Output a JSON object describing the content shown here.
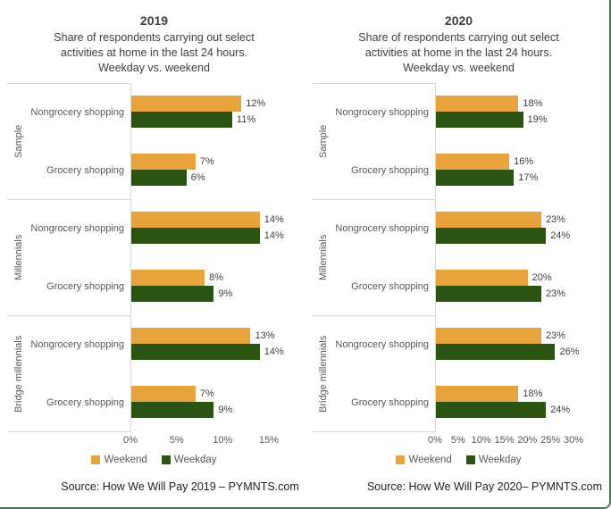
{
  "colors": {
    "weekend": "#E8A33C",
    "weekday": "#2B5413",
    "page_border": "#4A7654",
    "axis_line": "#D9D9D9"
  },
  "chart_data": [
    {
      "type": "bar",
      "orientation": "horizontal",
      "title": "2019",
      "subtitle_lines": [
        "Share of respondents carrying out select",
        "activities at home in the last 24 hours.",
        "Weekday vs. weekend"
      ],
      "xlim": [
        0,
        15
      ],
      "max": 15,
      "ticks": [
        "0%",
        "5%",
        "10%",
        "15%"
      ],
      "legend_position": "bottom",
      "legend": [
        {
          "label": "Weekend"
        },
        {
          "label": "Weekday"
        }
      ],
      "series": [
        {
          "name": "Weekend",
          "color": "#E8A33C",
          "values": [
            12,
            7,
            14,
            8,
            13,
            7
          ]
        },
        {
          "name": "Weekday",
          "color": "#2B5413",
          "values": [
            11,
            6,
            14,
            9,
            14,
            9
          ]
        }
      ],
      "groups": [
        {
          "label": "Sample",
          "rows": [
            {
              "category": "Nongrocery shopping",
              "weekend": 12,
              "weekend_label": "12%",
              "weekday": 11,
              "weekday_label": "11%"
            },
            {
              "category": "Grocery shopping",
              "weekend": 7,
              "weekend_label": "7%",
              "weekday": 6,
              "weekday_label": "6%"
            }
          ]
        },
        {
          "label": "Millennials",
          "rows": [
            {
              "category": "Nongrocery shopping",
              "weekend": 14,
              "weekend_label": "14%",
              "weekday": 14,
              "weekday_label": "14%"
            },
            {
              "category": "Grocery shopping",
              "weekend": 8,
              "weekend_label": "8%",
              "weekday": 9,
              "weekday_label": "9%"
            }
          ]
        },
        {
          "label": "Bridge millennials",
          "rows": [
            {
              "category": "Nongrocery shopping",
              "weekend": 13,
              "weekend_label": "13%",
              "weekday": 14,
              "weekday_label": "14%"
            },
            {
              "category": "Grocery shopping",
              "weekend": 7,
              "weekend_label": "7%",
              "weekday": 9,
              "weekday_label": "9%"
            }
          ]
        }
      ],
      "source": "Source: How We Will Pay 2019 – PYMNTS.com"
    },
    {
      "type": "bar",
      "orientation": "horizontal",
      "title": "2020",
      "subtitle_lines": [
        "Share of respondents carrying out select",
        "activities at home in the last 24 hours.",
        "Weekday vs. weekend"
      ],
      "xlim": [
        0,
        30
      ],
      "max": 30,
      "ticks": [
        "0%",
        "5%",
        "10%",
        "15%",
        "20%",
        "25%",
        "30%"
      ],
      "legend_position": "bottom",
      "legend": [
        {
          "label": "Weekend"
        },
        {
          "label": "Weekday"
        }
      ],
      "series": [
        {
          "name": "Weekend",
          "color": "#E8A33C",
          "values": [
            18,
            16,
            23,
            20,
            23,
            18
          ]
        },
        {
          "name": "Weekday",
          "color": "#2B5413",
          "values": [
            19,
            17,
            24,
            23,
            26,
            24
          ]
        }
      ],
      "groups": [
        {
          "label": "Sample",
          "rows": [
            {
              "category": "Nongrocery shopping",
              "weekend": 18,
              "weekend_label": "18%",
              "weekday": 19,
              "weekday_label": "19%"
            },
            {
              "category": "Grocery shopping",
              "weekend": 16,
              "weekend_label": "16%",
              "weekday": 17,
              "weekday_label": "17%"
            }
          ]
        },
        {
          "label": "Millennials",
          "rows": [
            {
              "category": "Nongrocery shopping",
              "weekend": 23,
              "weekend_label": "23%",
              "weekday": 24,
              "weekday_label": "24%"
            },
            {
              "category": "Grocery shopping",
              "weekend": 20,
              "weekend_label": "20%",
              "weekday": 23,
              "weekday_label": "23%"
            }
          ]
        },
        {
          "label": "Bridge millennials",
          "rows": [
            {
              "category": "Nongrocery shopping",
              "weekend": 23,
              "weekend_label": "23%",
              "weekday": 26,
              "weekday_label": "26%"
            },
            {
              "category": "Grocery shopping",
              "weekend": 18,
              "weekend_label": "18%",
              "weekday": 24,
              "weekday_label": "24%"
            }
          ]
        }
      ],
      "source": "Source: How We Will Pay 2020– PYMNTS.com"
    }
  ]
}
